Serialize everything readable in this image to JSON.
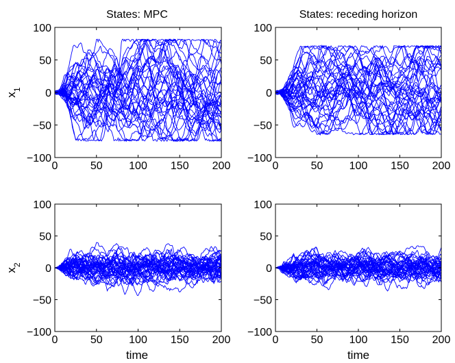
{
  "chart_data": [
    {
      "type": "line",
      "title": "States: MPC",
      "xlabel": "",
      "ylabel": "x",
      "ylabel_subscript": "1",
      "xlim": [
        0,
        200
      ],
      "ylim": [
        -100,
        100
      ],
      "xticks": [
        "0",
        "50",
        "100",
        "150",
        "200"
      ],
      "yticks": [
        "100",
        "50",
        "0",
        "−50",
        "−100"
      ],
      "line_color": "#0000ff",
      "num_trajectories": 40,
      "typical_range": [
        -75,
        82
      ],
      "grid": false
    },
    {
      "type": "line",
      "title": "States: receding horizon",
      "xlabel": "",
      "ylabel": "",
      "ylabel_subscript": "",
      "xlim": [
        0,
        200
      ],
      "ylim": [
        -100,
        100
      ],
      "xticks": [
        "0",
        "50",
        "100",
        "150",
        "200"
      ],
      "yticks": [
        "100",
        "50",
        "0",
        "−50",
        "−100"
      ],
      "line_color": "#0000ff",
      "num_trajectories": 40,
      "typical_range": [
        -65,
        72
      ],
      "grid": false
    },
    {
      "type": "line",
      "title": "",
      "xlabel": "time",
      "ylabel": "x",
      "ylabel_subscript": "2",
      "xlim": [
        0,
        200
      ],
      "ylim": [
        -100,
        100
      ],
      "xticks": [
        "0",
        "50",
        "100",
        "150",
        "200"
      ],
      "yticks": [
        "100",
        "50",
        "0",
        "−50",
        "−100"
      ],
      "line_color": "#0000ff",
      "num_trajectories": 40,
      "typical_range": [
        -47,
        40
      ],
      "grid": false
    },
    {
      "type": "line",
      "title": "",
      "xlabel": "time",
      "ylabel": "",
      "ylabel_subscript": "",
      "xlim": [
        0,
        200
      ],
      "ylim": [
        -100,
        100
      ],
      "xticks": [
        "0",
        "50",
        "100",
        "150",
        "200"
      ],
      "yticks": [
        "100",
        "50",
        "0",
        "−50",
        "−100"
      ],
      "line_color": "#0000ff",
      "num_trajectories": 40,
      "typical_range": [
        -43,
        35
      ],
      "grid": false
    }
  ]
}
